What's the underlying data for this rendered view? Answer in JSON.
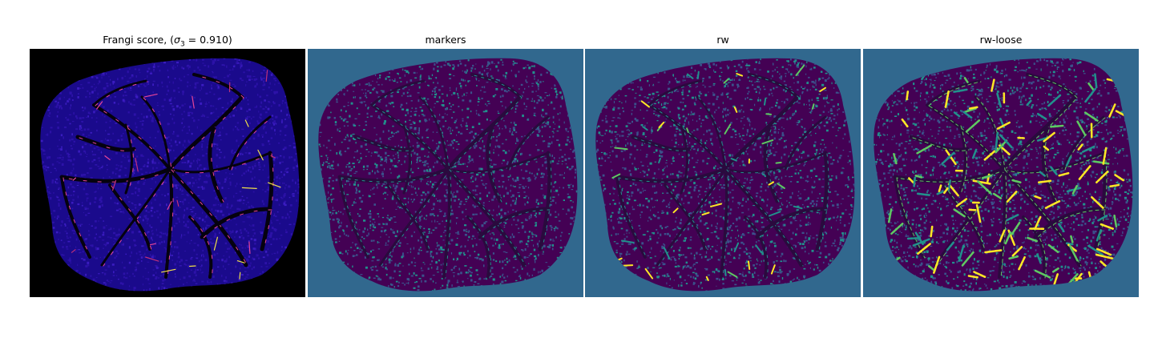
{
  "figure": {
    "panels": [
      {
        "id": "frangi",
        "title_prefix": "Frangi score, (",
        "title_sigma": "σ",
        "title_sub": "3",
        "title_suffix": " = 0.910)",
        "colormap": "plasma"
      },
      {
        "id": "markers",
        "title": "markers",
        "colormap": "viridis"
      },
      {
        "id": "rw",
        "title": "rw",
        "colormap": "viridis"
      },
      {
        "id": "rw-loose",
        "title": "rw-loose",
        "colormap": "viridis"
      }
    ]
  },
  "colors": {
    "frangi_background": "#000000",
    "frangi_tissue": "#1a0a8c",
    "frangi_texture": "#2c12a8",
    "frangi_vessel_dark": "#05020e",
    "frangi_highlight_hot": "#f0e04a",
    "frangi_highlight_pink": "#e8459a",
    "viridis_background": "#31688e",
    "viridis_tissue": "#440154",
    "viridis_texture": "#3b528b",
    "viridis_teal": "#21918c",
    "viridis_green": "#5ec962",
    "viridis_yellow": "#fde725"
  }
}
